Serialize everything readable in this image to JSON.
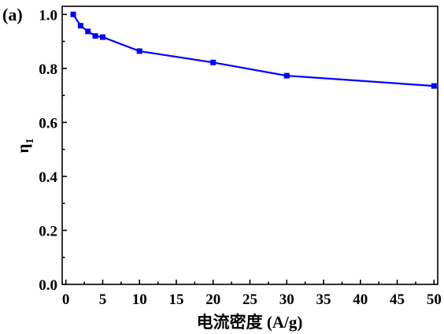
{
  "chart_data": {
    "type": "line",
    "panel_label": "(a)",
    "xlabel": "电流密度 (A/g)",
    "ylabel_main": "η",
    "ylabel_sub": "1",
    "xlim": [
      -0.5,
      50.5
    ],
    "ylim": [
      0.0,
      1.03
    ],
    "xticks": [
      0,
      5,
      10,
      15,
      20,
      25,
      30,
      35,
      40,
      45,
      50
    ],
    "yticks": [
      0.0,
      0.2,
      0.4,
      0.6,
      0.8,
      1.0
    ],
    "xtick_labels": [
      "0",
      "5",
      "10",
      "15",
      "20",
      "25",
      "30",
      "35",
      "40",
      "45",
      "50"
    ],
    "ytick_labels": [
      "0.0",
      "0.2",
      "0.4",
      "0.6",
      "0.8",
      "1.0"
    ],
    "grid": false,
    "legend": "none",
    "series": [
      {
        "color": "#0000ff",
        "marker": "square",
        "x": [
          1,
          2,
          3,
          4,
          5,
          10,
          20,
          30,
          50
        ],
        "y": [
          1.0,
          0.958,
          0.937,
          0.92,
          0.916,
          0.864,
          0.822,
          0.773,
          0.735
        ]
      }
    ]
  }
}
